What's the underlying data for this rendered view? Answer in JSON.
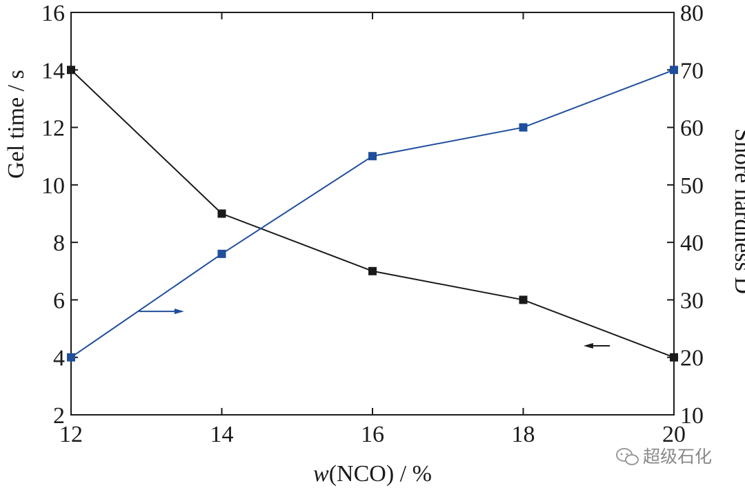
{
  "chart_data": {
    "type": "line",
    "x": [
      12,
      14,
      16,
      18,
      20
    ],
    "xlim": [
      12,
      20
    ],
    "xticks": [
      12,
      14,
      16,
      18,
      20
    ],
    "xlabel_italic": "w",
    "xlabel_rest": "(NCO) / %",
    "left_axis": {
      "label": "Gel time / s",
      "ylim": [
        2,
        16
      ],
      "ticks": [
        2,
        4,
        6,
        8,
        10,
        12,
        14,
        16
      ]
    },
    "right_axis": {
      "label": "Shore hardness D",
      "ylim": [
        10,
        80
      ],
      "ticks": [
        10,
        20,
        30,
        40,
        50,
        60,
        70,
        80
      ]
    },
    "series": [
      {
        "axis": "left",
        "color": "#1a1a1a",
        "values": [
          14,
          9,
          7,
          6,
          4
        ],
        "arrow": "left"
      },
      {
        "axis": "right",
        "color": "#1f4e9c",
        "values": [
          20,
          38,
          55,
          60,
          70
        ],
        "arrow": "right"
      }
    ],
    "grid": false,
    "legend": "none"
  },
  "watermark": {
    "text": "超级石化",
    "icon": "wechat-icon"
  }
}
